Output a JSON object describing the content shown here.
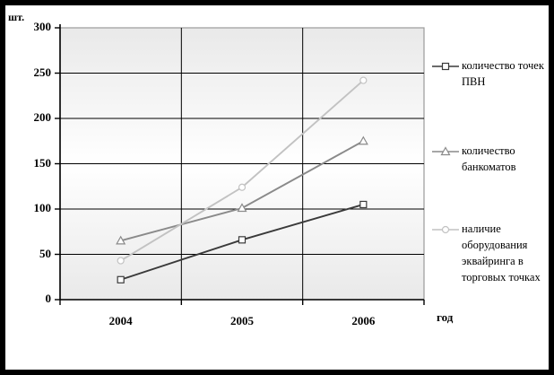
{
  "axis_unit_label": "шт.",
  "x_axis_label": "год",
  "chart_data": {
    "type": "line",
    "categories": [
      "2004",
      "2005",
      "2006"
    ],
    "series": [
      {
        "name": "количество точек ПВН",
        "marker": "square",
        "color": "#3a3a3a",
        "values": [
          22,
          66,
          105
        ]
      },
      {
        "name": "количество банкоматов",
        "marker": "triangle",
        "color": "#8a8a8a",
        "values": [
          65,
          101,
          175
        ]
      },
      {
        "name": "наличие оборудования эквайринга в торговых точках",
        "marker": "circle",
        "color": "#c2c2c2",
        "values": [
          43,
          124,
          242
        ]
      }
    ],
    "ylim": [
      0,
      300
    ],
    "ytick_step": 50,
    "grid": true,
    "legend_position": "right",
    "plot_background": {
      "top": "#e9e9e9",
      "middle": "#ffffff",
      "bottom": "#e9e9e9"
    },
    "gridline_color": "#000000",
    "plot_border_color": "#9a9a9a"
  }
}
